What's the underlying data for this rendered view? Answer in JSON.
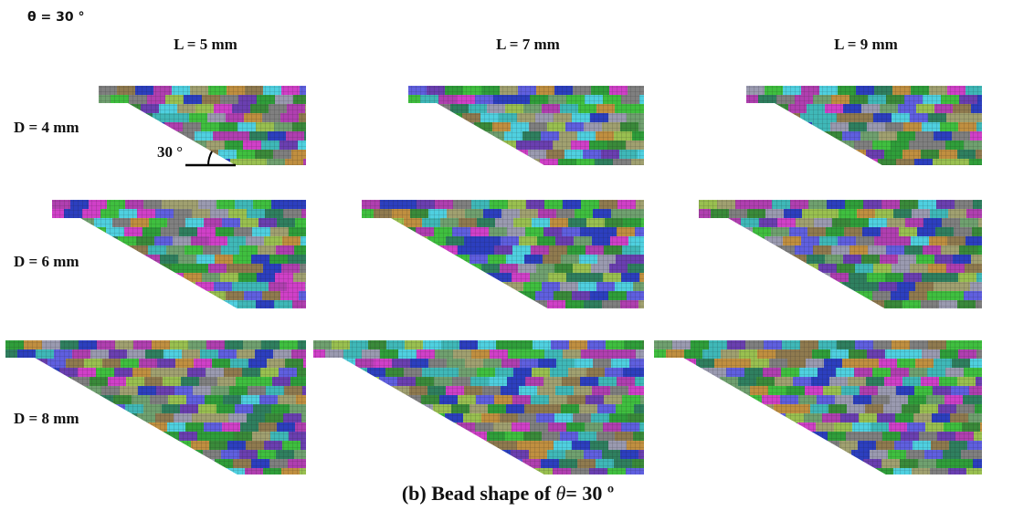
{
  "header": {
    "title": "θ = 30 °"
  },
  "columns": [
    "L = 5 mm",
    "L = 7 mm",
    "L = 9 mm"
  ],
  "rows": [
    "D = 4 mm",
    "D = 6 mm",
    "D = 8 mm"
  ],
  "angle_annotation": "30 °",
  "caption": {
    "prefix": "(b) Bead shape of",
    "symbol": "θ",
    "suffix": "= 30 º"
  }
}
